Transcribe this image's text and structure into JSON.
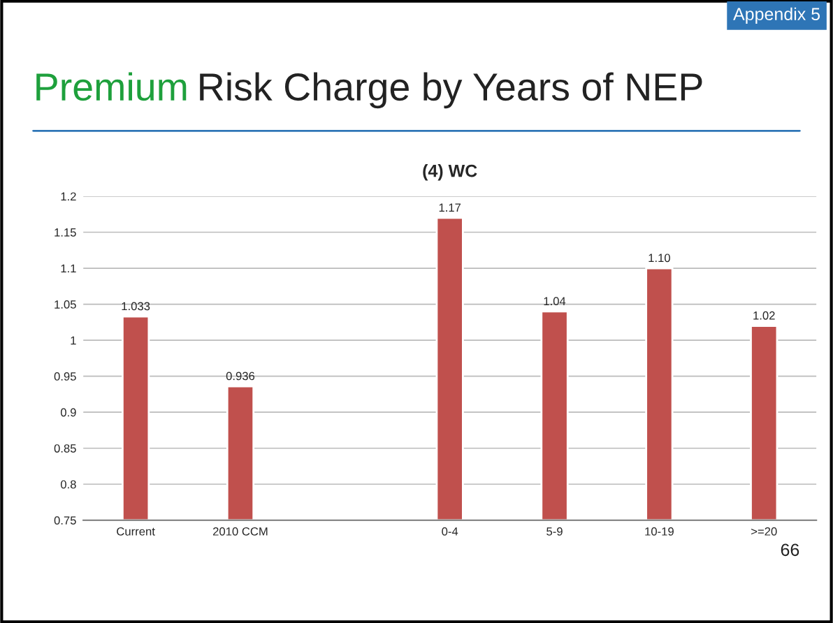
{
  "chart_data": {
    "type": "bar",
    "title": "Premium Risk Charge by Years of NEP",
    "subtitle": "(4) WC",
    "categories": [
      "Current",
      "2010 CCM",
      null,
      "0-4",
      "5-9",
      "10-19",
      ">=20"
    ],
    "values": [
      1.033,
      0.936,
      null,
      1.17,
      1.04,
      1.1,
      1.02
    ],
    "value_labels": [
      "1.033",
      "0.936",
      null,
      "1.17",
      "1.04",
      "1.10",
      "1.02"
    ],
    "color": "#c0504d",
    "ylim": [
      0.75,
      1.2
    ],
    "yticks": [
      0.75,
      0.8,
      0.85,
      0.9,
      0.95,
      1,
      1.05,
      1.1,
      1.15,
      1.2
    ],
    "grid": "y",
    "annotations": [
      "Appendix 5",
      "66"
    ]
  }
}
